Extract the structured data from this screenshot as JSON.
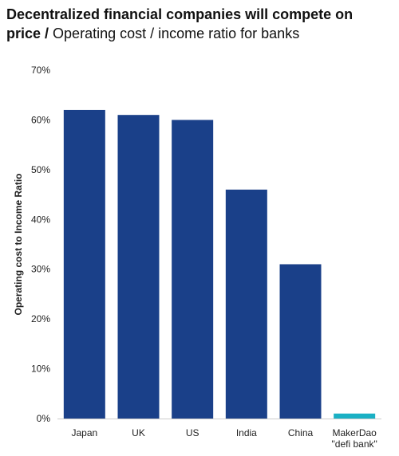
{
  "title": {
    "main": "Decentralized financial companies will compete on",
    "main_cont": "price /",
    "subtitle": "Operating cost / income ratio for banks"
  },
  "chart_data": {
    "type": "bar",
    "categories": [
      "Japan",
      "UK",
      "US",
      "India",
      "China",
      "MakerDao \"defi bank\""
    ],
    "category_lines": [
      [
        "Japan"
      ],
      [
        "UK"
      ],
      [
        "US"
      ],
      [
        "India"
      ],
      [
        "China"
      ],
      [
        "MakerDao",
        "\"defi bank\""
      ]
    ],
    "values": [
      62,
      61,
      60,
      46,
      31,
      1
    ],
    "bar_colors": [
      "#1a4089",
      "#1a4089",
      "#1a4089",
      "#1a4089",
      "#1a4089",
      "#1ab0c4"
    ],
    "ylabel": "Operating cost to Income Ratio",
    "xlabel": "",
    "ylim": [
      0,
      70
    ],
    "yticks": [
      0,
      10,
      20,
      30,
      40,
      50,
      60,
      70
    ],
    "ytick_labels": [
      "0%",
      "10%",
      "20%",
      "30%",
      "40%",
      "50%",
      "60%",
      "70%"
    ],
    "grid": false
  }
}
